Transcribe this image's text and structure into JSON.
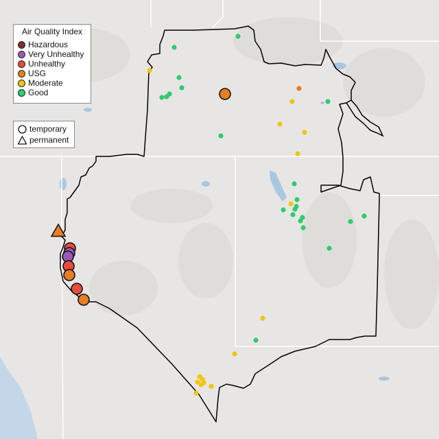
{
  "legend": {
    "title": "Air Quality Index",
    "categories": [
      {
        "key": "hazardous",
        "label": "Hazardous",
        "color": "#7e2e2e"
      },
      {
        "key": "very_unhealthy",
        "label": "Very Unhealthy",
        "color": "#9b59b6"
      },
      {
        "key": "unhealthy",
        "label": "Unhealthy",
        "color": "#e74c3c"
      },
      {
        "key": "usg",
        "label": "USG",
        "color": "#e67e22"
      },
      {
        "key": "moderate",
        "label": "Moderate",
        "color": "#f1c40f"
      },
      {
        "key": "good",
        "label": "Good",
        "color": "#2ecc71"
      }
    ]
  },
  "monitor_types": [
    {
      "key": "temporary",
      "label": "temporary",
      "icon": "circle-icon"
    },
    {
      "key": "permanent",
      "label": "permanent",
      "icon": "triangle-icon"
    }
  ],
  "colors": {
    "background": "#e8e6e4",
    "state_lines": "#ffffff",
    "region_boundary": "#000000",
    "lakes": "#a9c7e0",
    "ocean": "#c3d7e8"
  }
}
